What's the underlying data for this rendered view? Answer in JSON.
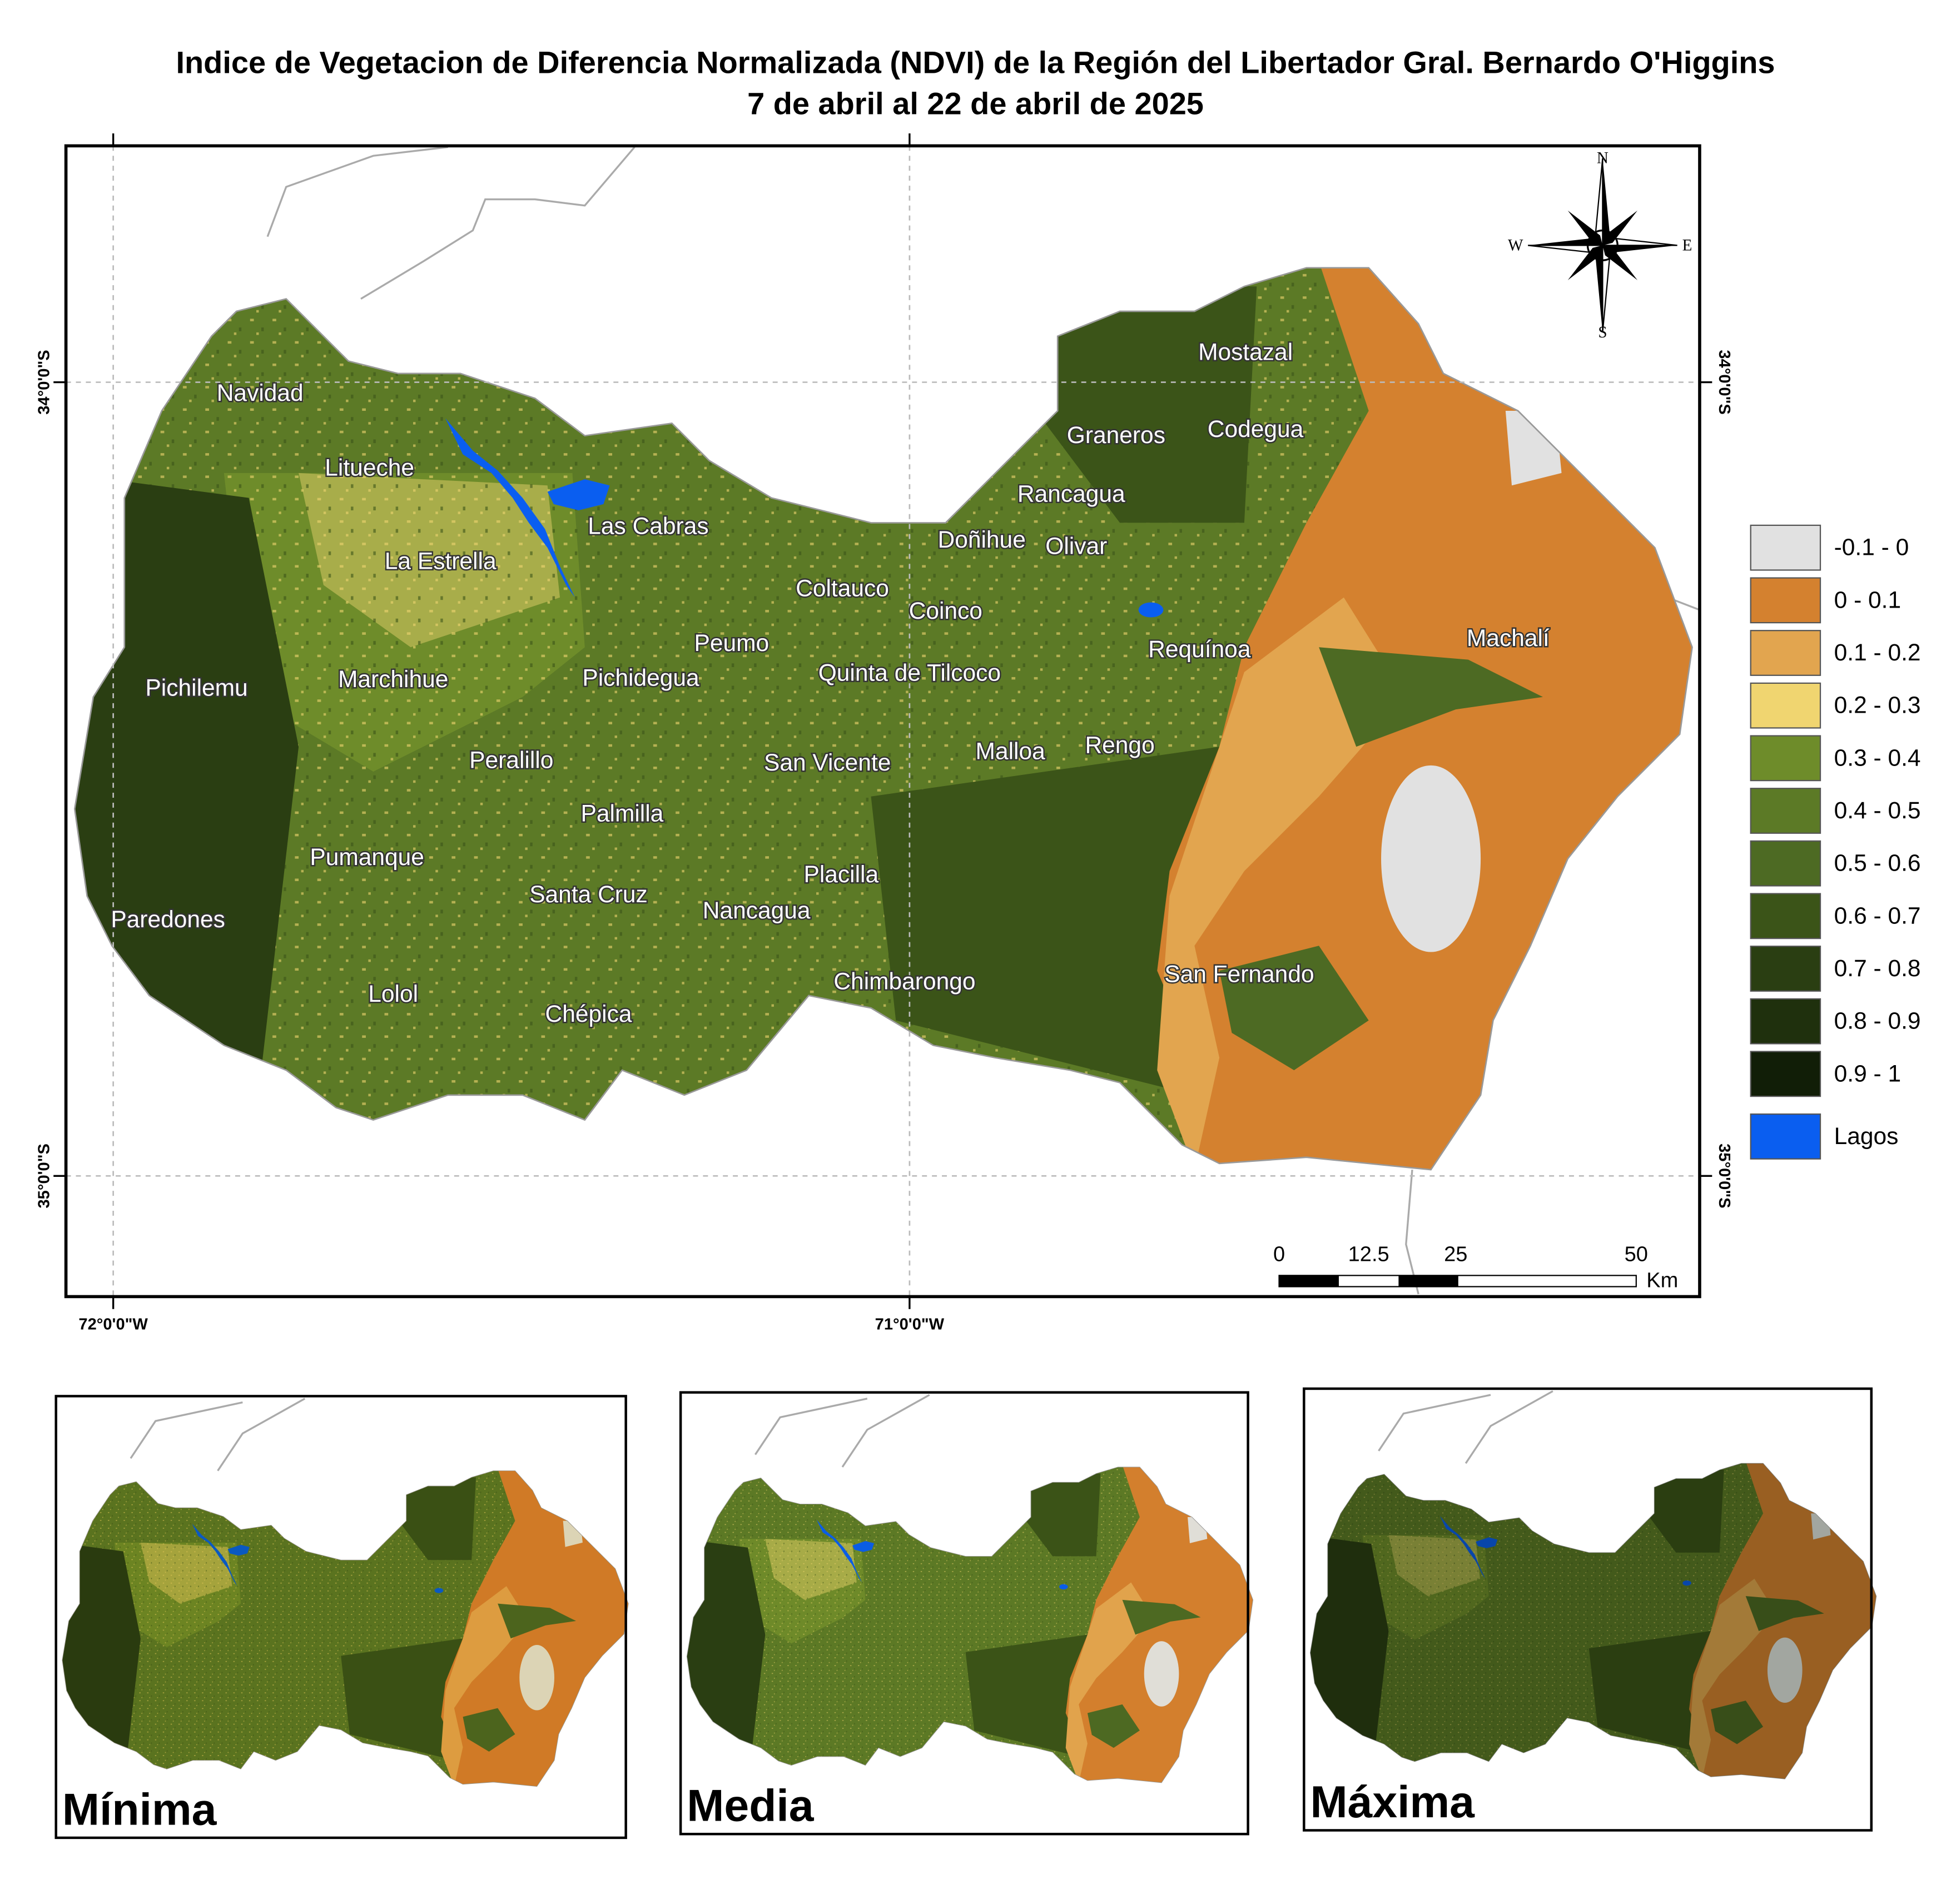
{
  "title": "Indice de Vegetacion de Diferencia Normalizada (NDVI) de la Región del Libertador Gral. Bernardo O'Higgins",
  "subtitle": "7 de abril al 22 de abril de 2025",
  "coordinates": {
    "lat_north_left": "34°0'0\"S",
    "lat_south_left": "35°0'0\"S",
    "lat_north_right": "34°0'0\"S",
    "lat_south_right": "35°0'0\"S",
    "lon_west": "72°0'0\"W",
    "lon_east": "71°0'0\"W"
  },
  "compass": {
    "north": "N",
    "south": "S",
    "east": "E",
    "west": "W"
  },
  "places": [
    "Navidad",
    "Litueche",
    "La Estrella",
    "Las Cabras",
    "Pichilemu",
    "Marchihue",
    "Pichidegua",
    "Peumo",
    "Coltauco",
    "Coinco",
    "Doñihue",
    "Olivar",
    "Rancagua",
    "Graneros",
    "Codegua",
    "Mostazal",
    "Quinta de Tilcoco",
    "Requínoa",
    "Machalí",
    "Peralillo",
    "San Vicente",
    "Malloa",
    "Rengo",
    "Palmilla",
    "Pumanque",
    "Placilla",
    "Santa Cruz",
    "Nancagua",
    "Paredones",
    "San Fernando",
    "Lolol",
    "Chépica",
    "Chimbarongo"
  ],
  "legend": [
    {
      "label": "-0.1 - 0",
      "color": "#e1e1e1"
    },
    {
      "label": "0 - 0.1",
      "color": "#d4812f"
    },
    {
      "label": "0.1 - 0.2",
      "color": "#e2a54f"
    },
    {
      "label": "0.2 - 0.3",
      "color": "#f0d570"
    },
    {
      "label": "0.3 - 0.4",
      "color": "#6e8c2a"
    },
    {
      "label": "0.4 - 0.5",
      "color": "#5c7a26"
    },
    {
      "label": "0.5 - 0.6",
      "color": "#4d6a23"
    },
    {
      "label": "0.6 - 0.7",
      "color": "#3b5418"
    },
    {
      "label": "0.7 - 0.8",
      "color": "#2a3e12"
    },
    {
      "label": "0.8 - 0.9",
      "color": "#1f300d"
    },
    {
      "label": "0.9 - 1",
      "color": "#111e07"
    },
    {
      "label": "Lagos",
      "color": "#0a5ef0"
    }
  ],
  "scale_bar": {
    "ticks": [
      "0",
      "12.5",
      "25",
      "50"
    ],
    "unit": "Km"
  },
  "insets": [
    {
      "label": "Mínima"
    },
    {
      "label": "Media"
    },
    {
      "label": "Máxima"
    }
  ]
}
